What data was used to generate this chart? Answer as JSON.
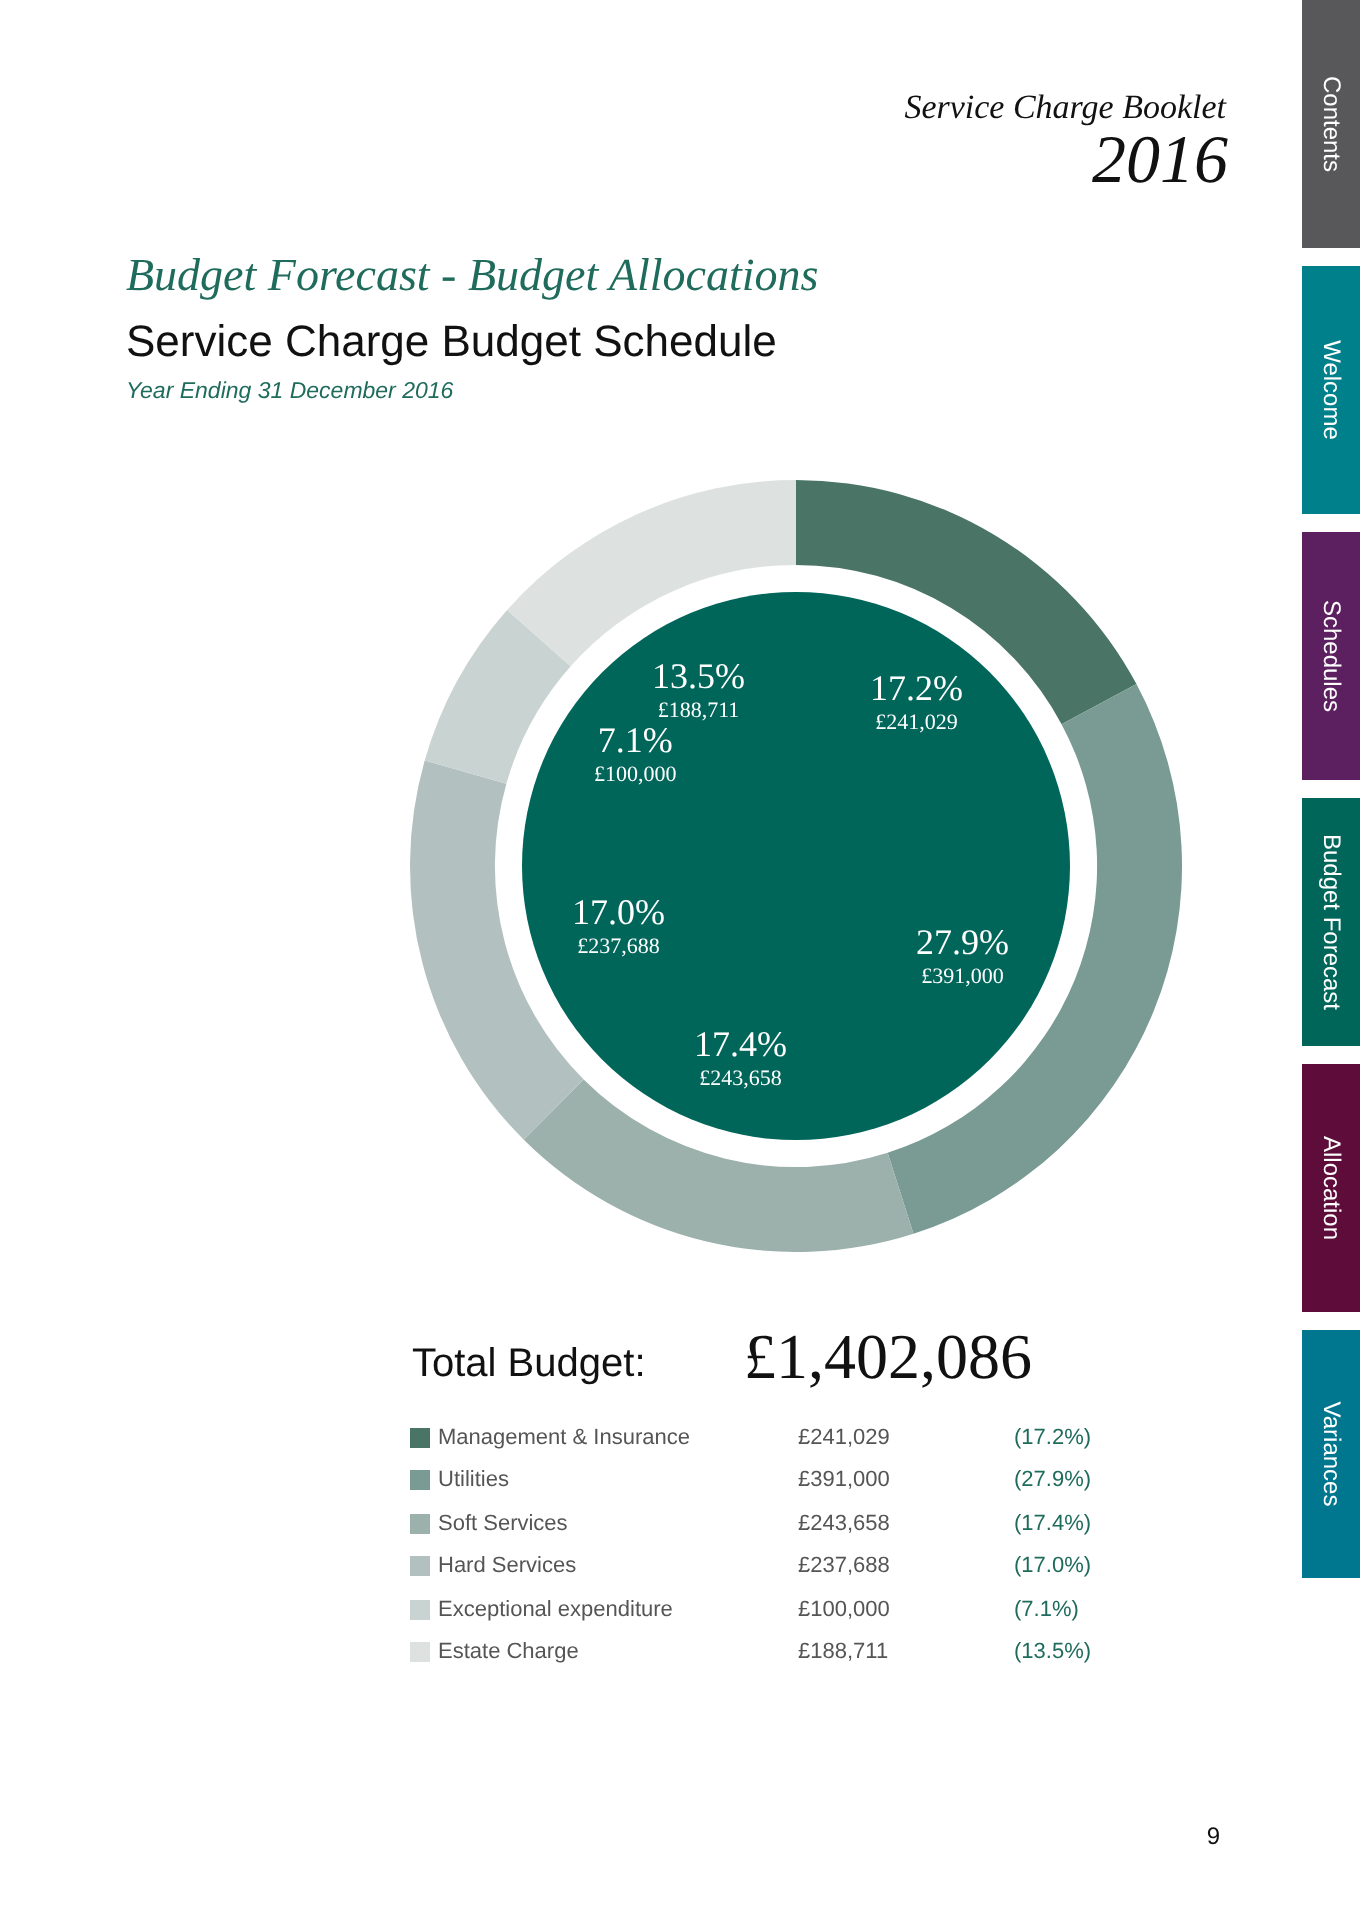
{
  "chart_data": {
    "type": "donut",
    "title": "Budget Forecast - Budget Allocations",
    "subtitle": "Service Charge Budget Schedule",
    "categories": [
      "Management & Insurance",
      "Utilities",
      "Soft Services",
      "Hard Services",
      "Exceptional expenditure",
      "Estate Charge"
    ],
    "values": [
      241029,
      391000,
      243658,
      237688,
      100000,
      188711
    ],
    "colors": [
      "#4a7566",
      "#7a9a94",
      "#9cb0ac",
      "#b2c1bf",
      "#c9d3d1",
      "#dde2e1"
    ],
    "value_labels": [
      "17.2%\n£241,029",
      "27.9%\n£391,000",
      "17.4%\n£243,658",
      "17.0%\n£237,688",
      "7.1%\n£100,000",
      "13.5%\n£188,711"
    ],
    "legend": "bottom",
    "annotations": [
      "Service Charge Booklet",
      "2016",
      "Year Ending 31 December 2016",
      "Total Budget:",
      "£1,402,086",
      "Contents",
      "Welcome",
      "Schedules",
      "Budget Forecast",
      "Allocation",
      "Variances",
      "9",
      "£241,029",
      "(17.2%)",
      "£391,000",
      "(27.9%)",
      "£243,658",
      "(17.4%)",
      "£237,688",
      "(17.0%)",
      "£100,000",
      "(7.1%)",
      "£188,711",
      "(13.5%)"
    ]
  }
}
